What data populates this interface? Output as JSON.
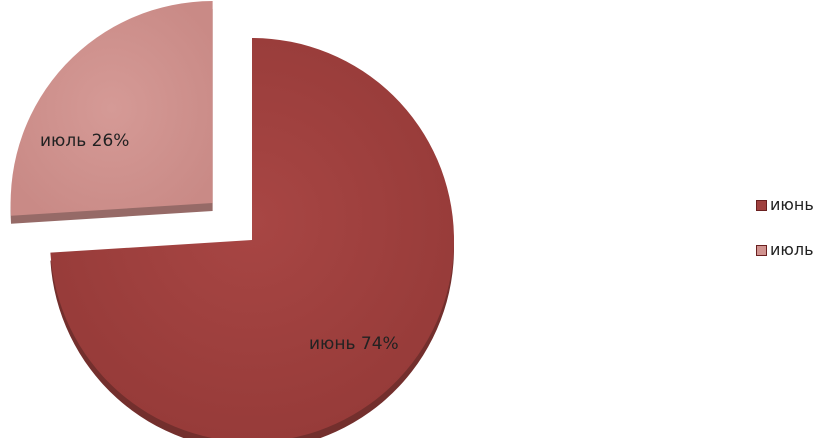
{
  "chart_data": {
    "type": "pie",
    "title": "",
    "exploded": true,
    "three_d": true,
    "legend_position": "right",
    "slices": [
      {
        "category": "июнь",
        "value": 74,
        "label": "июнь 74%",
        "color": "#a0413f"
      },
      {
        "category": "июль",
        "value": 26,
        "label": "июль  26%",
        "color": "#d0938f"
      }
    ]
  }
}
